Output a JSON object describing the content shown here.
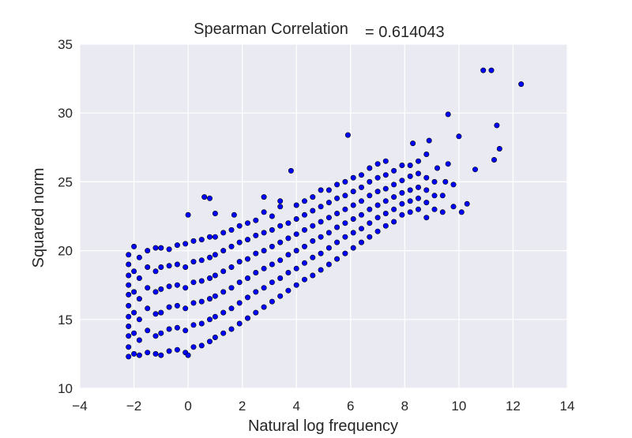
{
  "chart_data": {
    "type": "scatter",
    "title": "Spearman Correlation",
    "title_value": "= 0.614043",
    "xlabel": "Natural log frequency",
    "ylabel": "Squared norm",
    "xlim": [
      -4,
      14
    ],
    "ylim": [
      10,
      35
    ],
    "x_ticks": [
      -4,
      -2,
      0,
      2,
      4,
      6,
      8,
      10,
      12,
      14
    ],
    "y_ticks": [
      10,
      15,
      20,
      25,
      30,
      35
    ],
    "x_tick_labels": [
      "−4",
      "−2",
      "0",
      "2",
      "4",
      "6",
      "8",
      "10",
      "12",
      "14"
    ],
    "y_tick_labels": [
      "10",
      "15",
      "20",
      "25",
      "30",
      "35"
    ],
    "grid": true,
    "colors": {
      "point_fill": "#0000ff",
      "point_edge": "#000000",
      "plot_background": "#eaeaf2",
      "grid": "#ffffff"
    },
    "series": [
      {
        "values": [
          [
            -2.2,
            12.3
          ],
          [
            -2.2,
            13.0
          ],
          [
            -2.2,
            13.8
          ],
          [
            -2.2,
            14.5
          ],
          [
            -2.2,
            15.2
          ],
          [
            -2.2,
            16.0
          ],
          [
            -2.2,
            16.8
          ],
          [
            -2.2,
            17.5
          ],
          [
            -2.2,
            18.2
          ],
          [
            -2.2,
            19.0
          ],
          [
            -2.2,
            19.7
          ],
          [
            -2.0,
            12.5
          ],
          [
            -2.0,
            14.0
          ],
          [
            -2.0,
            15.5
          ],
          [
            -2.0,
            17.0
          ],
          [
            -2.0,
            18.5
          ],
          [
            -2.0,
            20.3
          ],
          [
            -1.8,
            12.4
          ],
          [
            -1.8,
            13.5
          ],
          [
            -1.8,
            15.0
          ],
          [
            -1.8,
            16.5
          ],
          [
            -1.8,
            18.0
          ],
          [
            -1.8,
            19.5
          ],
          [
            -1.5,
            12.6
          ],
          [
            -1.5,
            14.2
          ],
          [
            -1.5,
            15.8
          ],
          [
            -1.5,
            17.3
          ],
          [
            -1.5,
            18.8
          ],
          [
            -1.5,
            20.0
          ],
          [
            -1.2,
            12.5
          ],
          [
            -1.2,
            13.8
          ],
          [
            -1.2,
            15.4
          ],
          [
            -1.2,
            17.0
          ],
          [
            -1.2,
            18.5
          ],
          [
            -1.2,
            20.2
          ],
          [
            -1.0,
            12.4
          ],
          [
            -1.0,
            14.0
          ],
          [
            -1.0,
            15.5
          ],
          [
            -1.0,
            17.2
          ],
          [
            -1.0,
            18.8
          ],
          [
            -1.0,
            20.2
          ],
          [
            -0.7,
            12.7
          ],
          [
            -0.7,
            14.3
          ],
          [
            -0.7,
            15.9
          ],
          [
            -0.7,
            17.4
          ],
          [
            -0.7,
            18.9
          ],
          [
            -0.7,
            20.1
          ],
          [
            -0.4,
            12.8
          ],
          [
            -0.4,
            14.4
          ],
          [
            -0.4,
            16.0
          ],
          [
            -0.4,
            17.5
          ],
          [
            -0.4,
            19.0
          ],
          [
            -0.4,
            20.4
          ],
          [
            -0.1,
            12.6
          ],
          [
            -0.1,
            14.2
          ],
          [
            -0.1,
            15.8
          ],
          [
            -0.1,
            17.3
          ],
          [
            -0.1,
            18.8
          ],
          [
            -0.1,
            20.5
          ],
          [
            0.0,
            12.4
          ],
          [
            0.0,
            22.6
          ],
          [
            0.2,
            13.0
          ],
          [
            0.2,
            14.6
          ],
          [
            0.2,
            16.2
          ],
          [
            0.2,
            17.7
          ],
          [
            0.2,
            19.2
          ],
          [
            0.2,
            20.7
          ],
          [
            0.5,
            13.1
          ],
          [
            0.5,
            14.7
          ],
          [
            0.5,
            16.3
          ],
          [
            0.5,
            17.8
          ],
          [
            0.5,
            19.3
          ],
          [
            0.5,
            20.8
          ],
          [
            0.6,
            23.9
          ],
          [
            0.8,
            13.4
          ],
          [
            0.8,
            15.0
          ],
          [
            0.8,
            16.5
          ],
          [
            0.8,
            18.0
          ],
          [
            0.8,
            19.5
          ],
          [
            0.8,
            21.0
          ],
          [
            0.8,
            23.8
          ],
          [
            1.0,
            13.7
          ],
          [
            1.0,
            15.2
          ],
          [
            1.0,
            16.7
          ],
          [
            1.0,
            18.2
          ],
          [
            1.0,
            19.7
          ],
          [
            1.0,
            21.0
          ],
          [
            1.0,
            22.7
          ],
          [
            1.3,
            14.0
          ],
          [
            1.3,
            15.5
          ],
          [
            1.3,
            17.0
          ],
          [
            1.3,
            18.5
          ],
          [
            1.3,
            20.0
          ],
          [
            1.3,
            21.3
          ],
          [
            1.6,
            14.3
          ],
          [
            1.6,
            15.8
          ],
          [
            1.6,
            17.3
          ],
          [
            1.6,
            18.8
          ],
          [
            1.6,
            20.3
          ],
          [
            1.6,
            21.5
          ],
          [
            1.7,
            22.6
          ],
          [
            1.9,
            14.7
          ],
          [
            1.9,
            16.2
          ],
          [
            1.9,
            17.7
          ],
          [
            1.9,
            19.2
          ],
          [
            1.9,
            20.6
          ],
          [
            1.9,
            21.8
          ],
          [
            2.2,
            15.1
          ],
          [
            2.2,
            16.6
          ],
          [
            2.2,
            18.0
          ],
          [
            2.2,
            19.4
          ],
          [
            2.2,
            20.8
          ],
          [
            2.2,
            22.0
          ],
          [
            2.5,
            15.5
          ],
          [
            2.5,
            17.0
          ],
          [
            2.5,
            18.4
          ],
          [
            2.5,
            19.8
          ],
          [
            2.5,
            21.1
          ],
          [
            2.5,
            22.2
          ],
          [
            2.8,
            15.9
          ],
          [
            2.8,
            17.3
          ],
          [
            2.8,
            18.7
          ],
          [
            2.8,
            20.0
          ],
          [
            2.8,
            21.3
          ],
          [
            2.8,
            22.8
          ],
          [
            2.8,
            23.9
          ],
          [
            3.1,
            16.3
          ],
          [
            3.1,
            17.7
          ],
          [
            3.1,
            19.0
          ],
          [
            3.1,
            20.3
          ],
          [
            3.1,
            21.5
          ],
          [
            3.1,
            22.5
          ],
          [
            3.4,
            16.7
          ],
          [
            3.4,
            18.0
          ],
          [
            3.4,
            19.3
          ],
          [
            3.4,
            20.6
          ],
          [
            3.4,
            21.8
          ],
          [
            3.4,
            23.2
          ],
          [
            3.4,
            23.6
          ],
          [
            3.7,
            17.1
          ],
          [
            3.7,
            18.4
          ],
          [
            3.7,
            19.7
          ],
          [
            3.7,
            20.9
          ],
          [
            3.7,
            22.0
          ],
          [
            3.8,
            25.8
          ],
          [
            4.0,
            17.5
          ],
          [
            4.0,
            18.7
          ],
          [
            4.0,
            20.0
          ],
          [
            4.0,
            21.2
          ],
          [
            4.0,
            22.3
          ],
          [
            4.0,
            23.3
          ],
          [
            4.3,
            17.9
          ],
          [
            4.3,
            19.1
          ],
          [
            4.3,
            20.3
          ],
          [
            4.3,
            21.5
          ],
          [
            4.3,
            22.6
          ],
          [
            4.3,
            23.6
          ],
          [
            4.6,
            18.2
          ],
          [
            4.6,
            19.5
          ],
          [
            4.6,
            20.7
          ],
          [
            4.6,
            21.8
          ],
          [
            4.6,
            22.9
          ],
          [
            4.6,
            23.9
          ],
          [
            4.9,
            18.6
          ],
          [
            4.9,
            19.8
          ],
          [
            4.9,
            21.0
          ],
          [
            4.9,
            22.1
          ],
          [
            4.9,
            23.2
          ],
          [
            4.9,
            24.4
          ],
          [
            5.2,
            19.0
          ],
          [
            5.2,
            20.2
          ],
          [
            5.2,
            21.3
          ],
          [
            5.2,
            22.4
          ],
          [
            5.2,
            23.5
          ],
          [
            5.2,
            24.4
          ],
          [
            5.5,
            19.4
          ],
          [
            5.5,
            20.6
          ],
          [
            5.5,
            21.7
          ],
          [
            5.5,
            22.7
          ],
          [
            5.5,
            23.8
          ],
          [
            5.5,
            24.8
          ],
          [
            5.8,
            19.8
          ],
          [
            5.8,
            21.0
          ],
          [
            5.8,
            22.0
          ],
          [
            5.8,
            23.0
          ],
          [
            5.8,
            24.0
          ],
          [
            5.8,
            25.0
          ],
          [
            5.9,
            28.4
          ],
          [
            6.1,
            20.2
          ],
          [
            6.1,
            21.3
          ],
          [
            6.1,
            22.3
          ],
          [
            6.1,
            23.3
          ],
          [
            6.1,
            24.3
          ],
          [
            6.1,
            25.3
          ],
          [
            6.4,
            20.6
          ],
          [
            6.4,
            21.6
          ],
          [
            6.4,
            22.6
          ],
          [
            6.4,
            23.6
          ],
          [
            6.4,
            24.6
          ],
          [
            6.4,
            25.5
          ],
          [
            6.7,
            21.0
          ],
          [
            6.7,
            22.0
          ],
          [
            6.7,
            23.0
          ],
          [
            6.7,
            24.0
          ],
          [
            6.7,
            25.0
          ],
          [
            6.7,
            26.0
          ],
          [
            7.0,
            21.4
          ],
          [
            7.0,
            22.4
          ],
          [
            7.0,
            23.3
          ],
          [
            7.0,
            24.3
          ],
          [
            7.0,
            25.3
          ],
          [
            7.0,
            26.3
          ],
          [
            7.3,
            21.8
          ],
          [
            7.3,
            22.7
          ],
          [
            7.3,
            23.6
          ],
          [
            7.3,
            24.5
          ],
          [
            7.3,
            25.5
          ],
          [
            7.3,
            26.5
          ],
          [
            7.6,
            22.1
          ],
          [
            7.6,
            23.0
          ],
          [
            7.6,
            23.9
          ],
          [
            7.6,
            24.8
          ],
          [
            7.6,
            25.8
          ],
          [
            7.9,
            22.6
          ],
          [
            7.9,
            23.4
          ],
          [
            7.9,
            24.2
          ],
          [
            7.9,
            25.1
          ],
          [
            7.9,
            26.2
          ],
          [
            8.2,
            22.8
          ],
          [
            8.2,
            23.6
          ],
          [
            8.2,
            24.4
          ],
          [
            8.2,
            25.4
          ],
          [
            8.2,
            26.2
          ],
          [
            8.3,
            27.8
          ],
          [
            8.5,
            23.0
          ],
          [
            8.5,
            23.8
          ],
          [
            8.5,
            24.6
          ],
          [
            8.5,
            25.6
          ],
          [
            8.5,
            26.5
          ],
          [
            8.8,
            22.4
          ],
          [
            8.8,
            23.5
          ],
          [
            8.8,
            24.4
          ],
          [
            8.8,
            25.3
          ],
          [
            8.8,
            27.0
          ],
          [
            8.9,
            28.0
          ],
          [
            9.1,
            23.0
          ],
          [
            9.1,
            24.0
          ],
          [
            9.1,
            25.0
          ],
          [
            9.2,
            26.0
          ],
          [
            9.4,
            22.8
          ],
          [
            9.4,
            24.0
          ],
          [
            9.5,
            25.0
          ],
          [
            9.6,
            26.3
          ],
          [
            9.6,
            29.9
          ],
          [
            9.8,
            23.2
          ],
          [
            9.8,
            24.8
          ],
          [
            10.0,
            28.3
          ],
          [
            10.1,
            22.8
          ],
          [
            10.3,
            23.4
          ],
          [
            10.6,
            25.9
          ],
          [
            10.9,
            33.1
          ],
          [
            11.2,
            33.1
          ],
          [
            11.3,
            26.6
          ],
          [
            11.4,
            29.1
          ],
          [
            11.5,
            27.4
          ],
          [
            12.3,
            32.1
          ]
        ]
      }
    ]
  }
}
